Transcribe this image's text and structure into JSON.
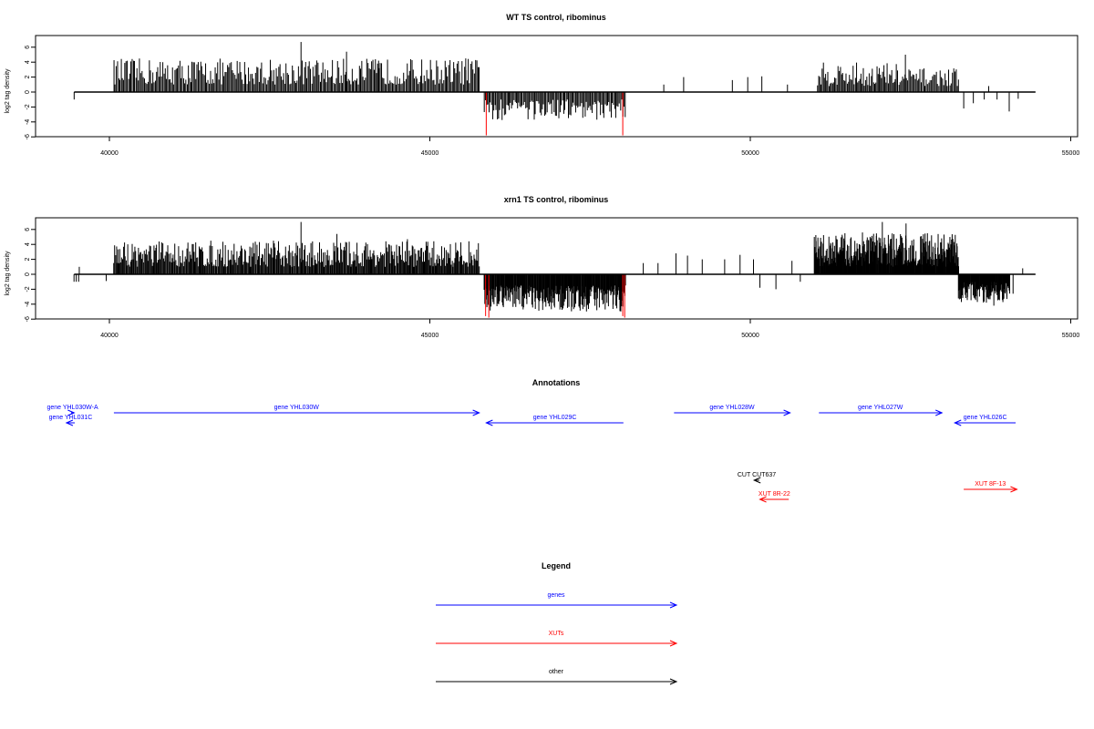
{
  "chart_data": [
    {
      "type": "bar",
      "title": "WT TS control, ribominus",
      "ylabel": "log2 tag density",
      "xlim": [
        39300,
        54500
      ],
      "ylim": [
        -6,
        7.5
      ],
      "yticks": [
        -6,
        -4,
        -2,
        0,
        2,
        4,
        6
      ],
      "xticks": [
        40000,
        45000,
        50000,
        55000
      ],
      "baseline": [
        39450,
        54450
      ],
      "bar_color": "#000000",
      "highlight_color": "#ff0000",
      "segments": [
        {
          "x": [
            39450,
            39450
          ],
          "y": [
            -1.0,
            -1.0
          ],
          "n": 1
        },
        {
          "x": [
            40070,
            45770
          ],
          "y": [
            1.0,
            4.5
          ],
          "n": 300
        },
        {
          "x": [
            45850,
            48050
          ],
          "y": [
            -1.0,
            -3.8
          ],
          "n": 120
        },
        {
          "x": [
            51050,
            52280
          ],
          "y": [
            0.8,
            4.0
          ],
          "n": 70
        },
        {
          "x": [
            52300,
            53250
          ],
          "y": [
            0.8,
            3.2
          ],
          "n": 50
        }
      ],
      "spikes": [
        {
          "x": 42990,
          "y": 6.7
        },
        {
          "x": 43700,
          "y": 5.4
        },
        {
          "x": 44200,
          "y": 4.2
        },
        {
          "x": 45560,
          "y": 4.5
        },
        {
          "x": 48650,
          "y": 1.0
        },
        {
          "x": 48960,
          "y": 2.0
        },
        {
          "x": 49720,
          "y": 1.6
        },
        {
          "x": 49960,
          "y": 2.0
        },
        {
          "x": 50180,
          "y": 2.1
        },
        {
          "x": 50580,
          "y": 1.0
        },
        {
          "x": 52420,
          "y": 5.0
        },
        {
          "x": 53330,
          "y": -2.2
        },
        {
          "x": 53480,
          "y": -1.5
        },
        {
          "x": 53650,
          "y": -1.0
        },
        {
          "x": 53720,
          "y": 0.8
        },
        {
          "x": 53850,
          "y": -1.0
        },
        {
          "x": 54040,
          "y": -2.6
        },
        {
          "x": 54180,
          "y": -0.9
        }
      ],
      "highlights": [
        {
          "x": 45880,
          "y": -5.8
        },
        {
          "x": 48010,
          "y": -5.8
        }
      ]
    },
    {
      "type": "bar",
      "title": "xrn1 TS control, ribominus",
      "ylabel": "log2 tag density",
      "xlim": [
        39300,
        54500
      ],
      "ylim": [
        -6,
        7.5
      ],
      "yticks": [
        -6,
        -4,
        -2,
        0,
        2,
        4,
        6
      ],
      "xticks": [
        40000,
        45000,
        50000,
        55000
      ],
      "baseline": [
        39450,
        54450
      ],
      "bar_color": "#000000",
      "highlight_color": "#ff0000",
      "segments": [
        {
          "x": [
            39450,
            39520
          ],
          "y": [
            -1.0,
            -1.0
          ],
          "n": 3
        },
        {
          "x": [
            40070,
            45770
          ],
          "y": [
            1.0,
            4.5
          ],
          "n": 420
        },
        {
          "x": [
            45850,
            48050
          ],
          "y": [
            -1.5,
            -5.0
          ],
          "n": 260
        },
        {
          "x": [
            51000,
            53250
          ],
          "y": [
            1.0,
            5.5
          ],
          "n": 330
        },
        {
          "x": [
            53250,
            54050
          ],
          "y": [
            -1.0,
            -3.8
          ],
          "n": 130
        }
      ],
      "spikes": [
        {
          "x": 39530,
          "y": 1.0
        },
        {
          "x": 39950,
          "y": -0.9
        },
        {
          "x": 42990,
          "y": 7.0
        },
        {
          "x": 43550,
          "y": 5.4
        },
        {
          "x": 44650,
          "y": 4.7
        },
        {
          "x": 48330,
          "y": 1.5
        },
        {
          "x": 48560,
          "y": 1.5
        },
        {
          "x": 48840,
          "y": 2.8
        },
        {
          "x": 49020,
          "y": 2.5
        },
        {
          "x": 49250,
          "y": 2.0
        },
        {
          "x": 49600,
          "y": 2.0
        },
        {
          "x": 49840,
          "y": 2.6
        },
        {
          "x": 50050,
          "y": 2.0
        },
        {
          "x": 50150,
          "y": -1.8
        },
        {
          "x": 50400,
          "y": -2.0
        },
        {
          "x": 50650,
          "y": 1.8
        },
        {
          "x": 50780,
          "y": -1.0
        },
        {
          "x": 51750,
          "y": 5.6
        },
        {
          "x": 52060,
          "y": 7.0
        },
        {
          "x": 52430,
          "y": 6.8
        },
        {
          "x": 53800,
          "y": -4.2
        },
        {
          "x": 54100,
          "y": -2.6
        },
        {
          "x": 54250,
          "y": 0.8
        }
      ],
      "highlights": [
        {
          "x": 45870,
          "y": -5.6
        },
        {
          "x": 45920,
          "y": -5.8
        },
        {
          "x": 48010,
          "y": -5.6
        },
        {
          "x": 48040,
          "y": -5.8
        }
      ]
    }
  ],
  "annotations": {
    "title": "Annotations",
    "xlim": [
      39300,
      54500
    ],
    "features": [
      {
        "label": "gene YHL030W-A",
        "kind": "gene",
        "strand": "+",
        "start": 39400,
        "end": 39450,
        "row": 0
      },
      {
        "label": "gene YHL031C",
        "kind": "gene",
        "strand": "-",
        "start": 39330,
        "end": 39460,
        "row": 1
      },
      {
        "label": "gene YHL030W",
        "kind": "gene",
        "strand": "+",
        "start": 40070,
        "end": 45770,
        "row": 0
      },
      {
        "label": "gene YHL029C",
        "kind": "gene",
        "strand": "-",
        "start": 45880,
        "end": 48020,
        "row": 1
      },
      {
        "label": "gene YHL028W",
        "kind": "gene",
        "strand": "+",
        "start": 48810,
        "end": 50620,
        "row": 0
      },
      {
        "label": "gene YHL027W",
        "kind": "gene",
        "strand": "+",
        "start": 51070,
        "end": 52990,
        "row": 0
      },
      {
        "label": "gene YHL026C",
        "kind": "gene",
        "strand": "-",
        "start": 53190,
        "end": 54140,
        "row": 1
      },
      {
        "label": "CUT CUT637",
        "kind": "other",
        "strand": "-",
        "start": 50060,
        "end": 50140,
        "row": 3
      },
      {
        "label": "XUT 8R-22",
        "kind": "xut",
        "strand": "-",
        "start": 50150,
        "end": 50600,
        "row": 4
      },
      {
        "label": "XUT 8F-13",
        "kind": "xut",
        "strand": "+",
        "start": 53330,
        "end": 54160,
        "row": 5
      }
    ]
  },
  "legend": {
    "title": "Legend",
    "items": [
      {
        "label": "genes",
        "kind": "gene"
      },
      {
        "label": "XUTs",
        "kind": "xut"
      },
      {
        "label": "other",
        "kind": "other"
      }
    ]
  },
  "colors": {
    "gene": "#0000ff",
    "xut": "#ff0000",
    "other": "#000000"
  }
}
